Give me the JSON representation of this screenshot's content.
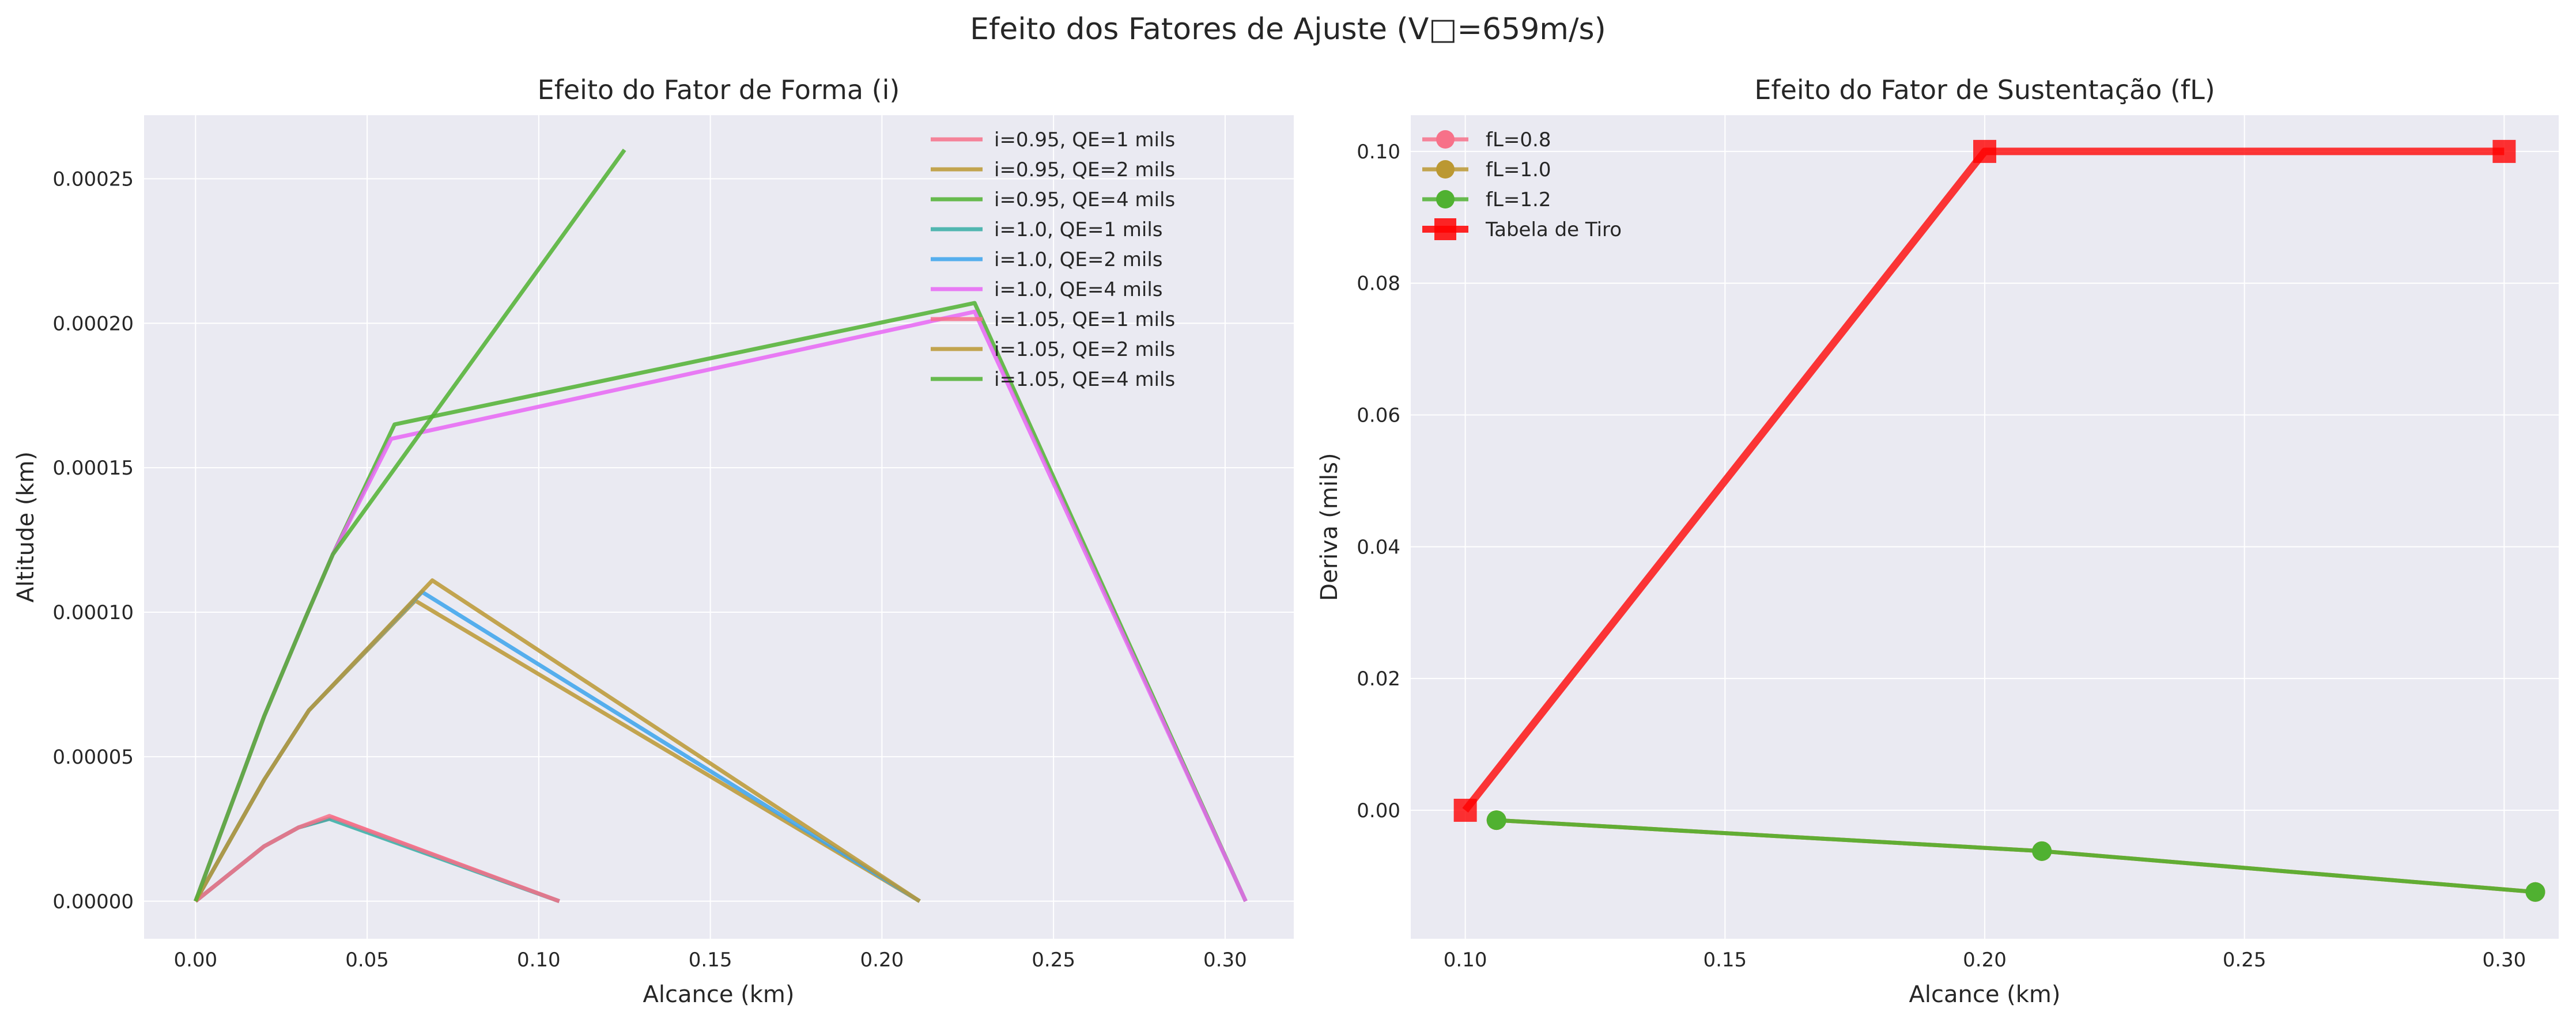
{
  "figure": {
    "suptitle": "Efeito dos Fatores de Ajuste (V□=659m/s)"
  },
  "colors": {
    "background": "#ffffff",
    "axes_face": "#eaeaf2",
    "grid": "#ffffff"
  },
  "chart_data": [
    {
      "type": "line",
      "title": "Efeito do Fator de Forma (i)",
      "xlabel": "Alcance (km)",
      "ylabel": "Altitude (km)",
      "xlim": [
        -0.015,
        0.32
      ],
      "ylim": [
        -1.3e-05,
        0.000272
      ],
      "xticks": [
        0.0,
        0.05,
        0.1,
        0.15,
        0.2,
        0.25,
        0.3
      ],
      "xtick_labels": [
        "0.00",
        "0.05",
        "0.10",
        "0.15",
        "0.20",
        "0.25",
        "0.30"
      ],
      "yticks": [
        0.0,
        5e-05,
        0.0001,
        0.00015,
        0.0002,
        0.00025
      ],
      "ytick_labels": [
        "0.00000",
        "0.00005",
        "0.00010",
        "0.00015",
        "0.00020",
        "0.00025"
      ],
      "grid": true,
      "legend_position": "top-right",
      "series": [
        {
          "name": "i=0.95, QE=1 mils",
          "color": "#f77189",
          "x": [
            0,
            0.02,
            0.03,
            0.04,
            0.106
          ],
          "y": [
            0,
            1.9e-05,
            2.55e-05,
            2.9e-05,
            0
          ]
        },
        {
          "name": "i=0.95, QE=2 mils",
          "color": "#bb9832",
          "x": [
            0,
            0.02,
            0.033,
            0.064,
            0.211
          ],
          "y": [
            0,
            4.2e-05,
            6.6e-05,
            0.000104,
            0
          ]
        },
        {
          "name": "i=0.95, QE=4 mils",
          "color": "#50b131",
          "x": [
            0,
            0.02,
            0.032,
            0.04,
            0.058,
            0.227,
            0.306
          ],
          "y": [
            0,
            6.4e-05,
            9.8e-05,
            0.00012,
            0.000165,
            0.000207,
            0
          ]
        },
        {
          "name": "i=1.0, QE=1 mils",
          "color": "#36ada4",
          "x": [
            0,
            0.02,
            0.03,
            0.039,
            0.106
          ],
          "y": [
            0,
            1.9e-05,
            2.55e-05,
            2.85e-05,
            0
          ]
        },
        {
          "name": "i=1.0, QE=2 mils",
          "color": "#3ba3ec",
          "x": [
            0,
            0.02,
            0.033,
            0.066,
            0.211
          ],
          "y": [
            0,
            4.2e-05,
            6.6e-05,
            0.000107,
            0
          ]
        },
        {
          "name": "i=1.0, QE=4 mils",
          "color": "#e866f4",
          "x": [
            0,
            0.02,
            0.032,
            0.04,
            0.057,
            0.227,
            0.306
          ],
          "y": [
            0,
            6.4e-05,
            9.8e-05,
            0.00012,
            0.00016,
            0.000204,
            0
          ]
        },
        {
          "name": "i=1.05, QE=1 mils",
          "color": "#f77189",
          "x": [
            0,
            0.02,
            0.03,
            0.039,
            0.106
          ],
          "y": [
            0,
            1.9e-05,
            2.55e-05,
            2.95e-05,
            0
          ]
        },
        {
          "name": "i=1.05, QE=2 mils",
          "color": "#bb9832",
          "x": [
            0,
            0.02,
            0.033,
            0.069,
            0.211
          ],
          "y": [
            0,
            4.2e-05,
            6.6e-05,
            0.000111,
            0
          ]
        },
        {
          "name": "i=1.05, QE=4 mils",
          "color": "#50b131",
          "x": [
            0,
            0.02,
            0.032,
            0.04,
            0.125
          ],
          "y": [
            0,
            6.4e-05,
            9.8e-05,
            0.00012,
            0.00026
          ]
        }
      ]
    },
    {
      "type": "line",
      "title": "Efeito do Fator de Sustentação (fL)",
      "xlabel": "Alcance (km)",
      "ylabel": "Deriva (mils)",
      "xlim": [
        0.0895,
        0.3105
      ],
      "ylim": [
        -0.0195,
        0.1055
      ],
      "xticks": [
        0.1,
        0.15,
        0.2,
        0.25,
        0.3
      ],
      "xtick_labels": [
        "0.10",
        "0.15",
        "0.20",
        "0.25",
        "0.30"
      ],
      "yticks": [
        0.0,
        0.02,
        0.04,
        0.06,
        0.08,
        0.1
      ],
      "ytick_labels": [
        "0.00",
        "0.02",
        "0.04",
        "0.06",
        "0.08",
        "0.10"
      ],
      "grid": true,
      "legend_position": "top-left",
      "series": [
        {
          "name": "fL=0.8",
          "color": "#f77189",
          "marker": "circle",
          "x": [
            0.106,
            0.211,
            0.306
          ],
          "y": [
            -0.0015,
            -0.0062,
            -0.0124
          ]
        },
        {
          "name": "fL=1.0",
          "color": "#bb9832",
          "marker": "circle",
          "x": [
            0.106,
            0.211,
            0.306
          ],
          "y": [
            -0.0015,
            -0.0062,
            -0.0124
          ]
        },
        {
          "name": "fL=1.2",
          "color": "#50b131",
          "marker": "circle",
          "x": [
            0.106,
            0.211,
            0.306
          ],
          "y": [
            -0.0015,
            -0.0062,
            -0.0124
          ]
        },
        {
          "name": "Tabela de Tiro",
          "color": "#ff0000",
          "marker": "square",
          "x": [
            0.1,
            0.2,
            0.3
          ],
          "y": [
            0.0,
            0.1,
            0.1
          ]
        }
      ]
    }
  ]
}
